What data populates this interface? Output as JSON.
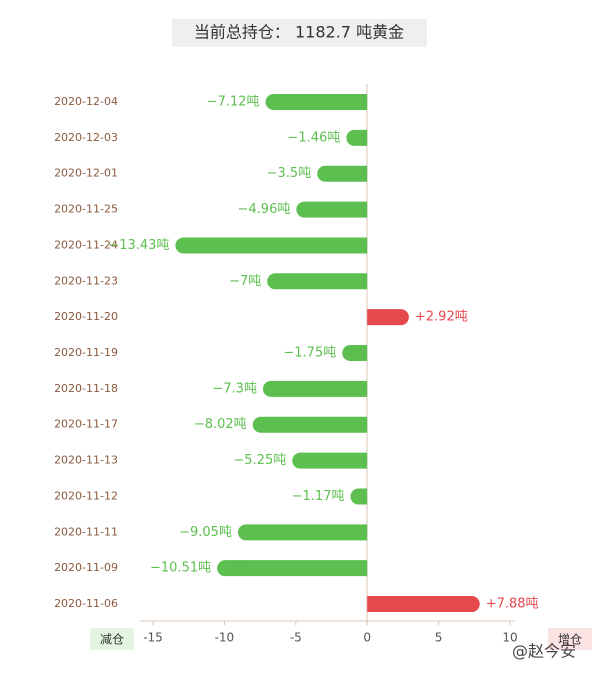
{
  "chart_data": {
    "type": "hbar",
    "title": "当前总持仓： 1182.7 吨黄金",
    "categories": [
      "2020-12-04",
      "2020-12-03",
      "2020-12-01",
      "2020-11-25",
      "2020-11-24",
      "2020-11-23",
      "2020-11-20",
      "2020-11-19",
      "2020-11-18",
      "2020-11-17",
      "2020-11-13",
      "2020-11-12",
      "2020-11-11",
      "2020-11-09",
      "2020-11-06"
    ],
    "values": [
      -7.12,
      -1.46,
      -3.5,
      -4.96,
      -13.43,
      -7,
      2.92,
      -1.75,
      -7.3,
      -8.02,
      -5.25,
      -1.17,
      -9.05,
      -10.51,
      7.88
    ],
    "value_labels": [
      "−7.12吨",
      "−1.46吨",
      "−3.5吨",
      "−4.96吨",
      "−13.43吨",
      "−7吨",
      "+2.92吨",
      "−1.75吨",
      "−7.3吨",
      "−8.02吨",
      "−5.25吨",
      "−1.17吨",
      "−9.05吨",
      "−10.51吨",
      "+7.88吨"
    ],
    "positive_color": "#e5484d",
    "negative_color": "#5dbf4f",
    "xlim": [
      -15,
      10
    ],
    "xticks": [
      -15,
      -10,
      -5,
      0,
      5,
      10
    ],
    "left_label": "减仓",
    "right_label": "增仓",
    "watermark": "@赵今安"
  }
}
